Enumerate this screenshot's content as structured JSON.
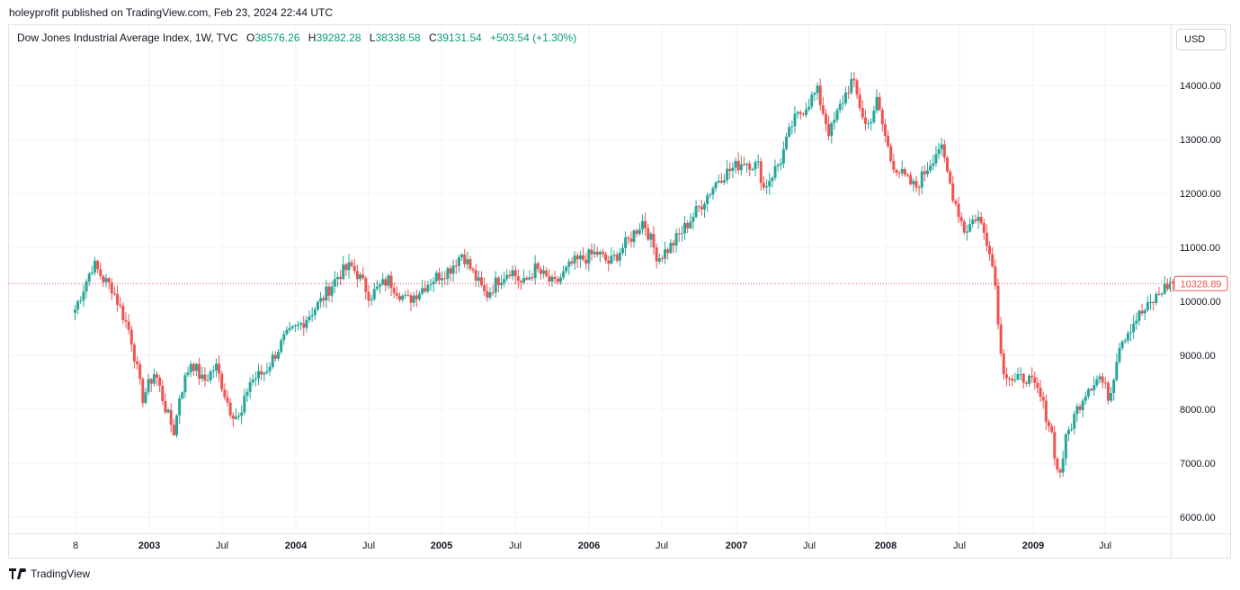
{
  "publisher_line": "holeyprofit published on TradingView.com, Feb 23, 2024 22:44 UTC",
  "legend": {
    "symbol": "Dow Jones Industrial Average Index, 1W, TVC",
    "open_label": "O",
    "open": "38576.26",
    "high_label": "H",
    "high": "39282.28",
    "low_label": "L",
    "low": "38338.58",
    "close_label": "C",
    "close": "39131.54",
    "change": "+503.54 (+1.30%)"
  },
  "currency": "USD",
  "brand": "TradingView",
  "colors": {
    "up": "#26a69a",
    "down": "#ef5350",
    "grid": "#f0f3fa",
    "last_price": "#ef5350"
  },
  "chart_data": {
    "type": "candlestick",
    "y_ticks": [
      "14000.00",
      "13000.00",
      "12000.00",
      "11000.00",
      "10000.00",
      "9000.00",
      "8000.00",
      "7000.00",
      "6000.00"
    ],
    "x_ticks": [
      "8",
      "2003",
      "Jul",
      "2004",
      "Jul",
      "2005",
      "Jul",
      "2006",
      "Jul",
      "2007",
      "Jul",
      "2008",
      "Jul",
      "2009",
      "Jul"
    ],
    "ylim": [
      5800,
      14500
    ],
    "last_price": "10328.89",
    "grid": true,
    "keypoints": [
      [
        "2002-07-01",
        9850
      ],
      [
        "2002-08-15",
        10700
      ],
      [
        "2002-09-10",
        10400
      ],
      [
        "2002-10-01",
        10250
      ],
      [
        "2002-11-15",
        9400
      ],
      [
        "2002-12-15",
        8200
      ],
      [
        "2003-01-15",
        8700
      ],
      [
        "2003-02-15",
        7900
      ],
      [
        "2003-03-05",
        7550
      ],
      [
        "2003-03-15",
        8200
      ],
      [
        "2003-04-15",
        8900
      ],
      [
        "2003-05-15",
        8500
      ],
      [
        "2003-06-15",
        8800
      ],
      [
        "2003-07-20",
        8000
      ],
      [
        "2003-08-15",
        7800
      ],
      [
        "2003-09-05",
        8500
      ],
      [
        "2003-10-15",
        8700
      ],
      [
        "2003-12-01",
        9300
      ],
      [
        "2004-01-15",
        9600
      ],
      [
        "2004-03-01",
        10000
      ],
      [
        "2004-04-15",
        10500
      ],
      [
        "2004-05-15",
        10650
      ],
      [
        "2004-06-01",
        10500
      ],
      [
        "2004-07-01",
        10100
      ],
      [
        "2004-08-15",
        10400
      ],
      [
        "2004-10-01",
        10000
      ],
      [
        "2004-11-01",
        10200
      ],
      [
        "2004-12-01",
        10400
      ],
      [
        "2005-01-15",
        10600
      ],
      [
        "2005-02-15",
        10900
      ],
      [
        "2005-03-15",
        10500
      ],
      [
        "2005-04-15",
        10100
      ],
      [
        "2005-05-15",
        10400
      ],
      [
        "2005-06-15",
        10600
      ],
      [
        "2005-07-15",
        10300
      ],
      [
        "2005-08-15",
        10600
      ],
      [
        "2005-10-01",
        10300
      ],
      [
        "2005-11-15",
        10700
      ],
      [
        "2006-01-15",
        10900
      ],
      [
        "2006-02-15",
        10700
      ],
      [
        "2006-04-01",
        11100
      ],
      [
        "2006-05-10",
        11500
      ],
      [
        "2006-06-15",
        10800
      ],
      [
        "2006-07-15",
        11000
      ],
      [
        "2006-08-15",
        11300
      ],
      [
        "2006-10-01",
        11800
      ],
      [
        "2006-11-15",
        12300
      ],
      [
        "2007-01-15",
        12600
      ],
      [
        "2007-02-20",
        12500
      ],
      [
        "2007-03-05",
        12100
      ],
      [
        "2007-04-15",
        12600
      ],
      [
        "2007-05-15",
        13300
      ],
      [
        "2007-06-15",
        13600
      ],
      [
        "2007-07-15",
        13900
      ],
      [
        "2007-08-15",
        13100
      ],
      [
        "2007-09-15",
        13700
      ],
      [
        "2007-10-10",
        14100
      ],
      [
        "2007-11-15",
        13200
      ],
      [
        "2007-12-10",
        13700
      ],
      [
        "2008-01-15",
        12600
      ],
      [
        "2008-02-15",
        12300
      ],
      [
        "2008-03-15",
        12100
      ],
      [
        "2008-04-15",
        12500
      ],
      [
        "2008-05-15",
        12900
      ],
      [
        "2008-06-15",
        12000
      ],
      [
        "2008-07-15",
        11300
      ],
      [
        "2008-08-15",
        11600
      ],
      [
        "2008-09-15",
        11000
      ],
      [
        "2008-10-01",
        10200
      ],
      [
        "2008-10-15",
        8800
      ],
      [
        "2008-11-15",
        8500
      ],
      [
        "2008-12-15",
        8600
      ],
      [
        "2009-01-15",
        8300
      ],
      [
        "2009-02-15",
        7600
      ],
      [
        "2009-03-05",
        6700
      ],
      [
        "2009-03-25",
        7500
      ],
      [
        "2009-04-20",
        8000
      ],
      [
        "2009-05-15",
        8400
      ],
      [
        "2009-06-15",
        8600
      ],
      [
        "2009-07-10",
        8200
      ],
      [
        "2009-08-01",
        9200
      ],
      [
        "2009-09-15",
        9700
      ],
      [
        "2009-10-15",
        9900
      ],
      [
        "2009-11-15",
        10200
      ],
      [
        "2009-12-10",
        10350
      ],
      [
        "2009-12-20",
        10330
      ]
    ]
  }
}
